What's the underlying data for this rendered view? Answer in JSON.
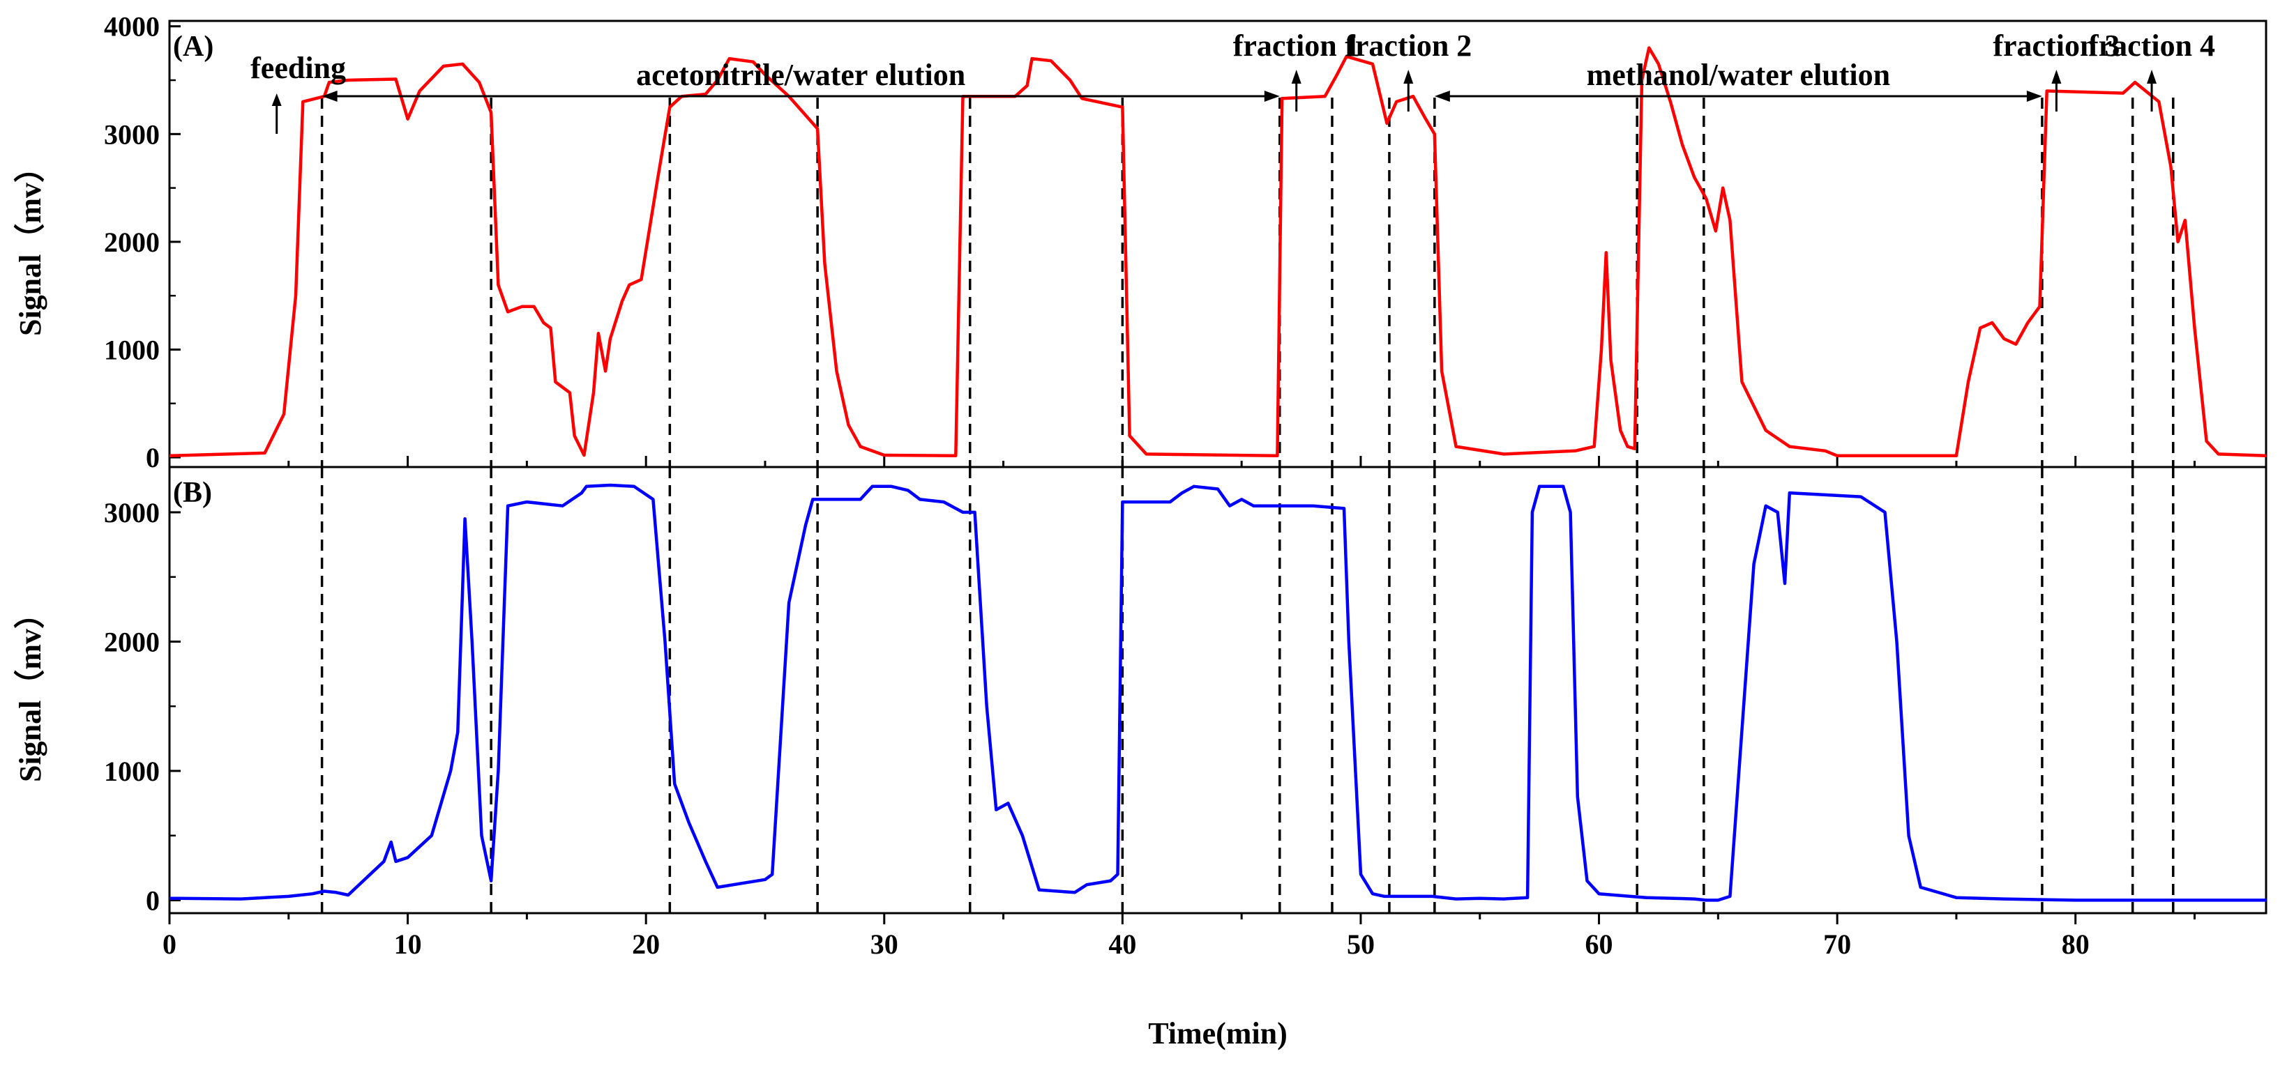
{
  "chart_data": [
    {
      "type": "line",
      "panel_label": "(A)",
      "ylabel": "Signal（mv）",
      "xlim": [
        0,
        88
      ],
      "ylim": [
        -90,
        4050
      ],
      "y_ticks": [
        0,
        1000,
        2000,
        3000,
        4000
      ],
      "series": [
        {
          "color": "#ff0000",
          "points": [
            [
              0,
              15
            ],
            [
              4,
              40
            ],
            [
              4.8,
              400
            ],
            [
              5.3,
              1500
            ],
            [
              5.6,
              3300
            ],
            [
              6.5,
              3350
            ],
            [
              6.7,
              3480
            ],
            [
              7.5,
              3500
            ],
            [
              9.5,
              3510
            ],
            [
              10,
              3140
            ],
            [
              10.5,
              3400
            ],
            [
              11.5,
              3630
            ],
            [
              12.3,
              3650
            ],
            [
              13,
              3480
            ],
            [
              13.5,
              3200
            ],
            [
              13.8,
              1600
            ],
            [
              14.2,
              1350
            ],
            [
              14.8,
              1400
            ],
            [
              15.3,
              1400
            ],
            [
              15.7,
              1250
            ],
            [
              16,
              1200
            ],
            [
              16.2,
              700
            ],
            [
              16.8,
              600
            ],
            [
              17.0,
              200
            ],
            [
              17.4,
              20
            ],
            [
              17.8,
              600
            ],
            [
              18.0,
              1150
            ],
            [
              18.3,
              800
            ],
            [
              18.5,
              1100
            ],
            [
              19,
              1450
            ],
            [
              19.3,
              1600
            ],
            [
              19.8,
              1650
            ],
            [
              20.5,
              2600
            ],
            [
              21,
              3250
            ],
            [
              21.5,
              3350
            ],
            [
              22.5,
              3370
            ],
            [
              23,
              3500
            ],
            [
              23.5,
              3700
            ],
            [
              24.5,
              3670
            ],
            [
              25,
              3550
            ],
            [
              26,
              3350
            ],
            [
              27.2,
              3050
            ],
            [
              27.5,
              1800
            ],
            [
              28,
              800
            ],
            [
              28.5,
              300
            ],
            [
              29,
              100
            ],
            [
              30,
              20
            ],
            [
              33,
              15
            ],
            [
              33.3,
              3350
            ],
            [
              35.5,
              3350
            ],
            [
              36,
              3450
            ],
            [
              36.2,
              3700
            ],
            [
              37,
              3680
            ],
            [
              37.8,
              3500
            ],
            [
              38.3,
              3330
            ],
            [
              40,
              3250
            ],
            [
              40.3,
              200
            ],
            [
              41,
              30
            ],
            [
              46.5,
              15
            ],
            [
              46.7,
              3330
            ],
            [
              48.5,
              3350
            ],
            [
              49,
              3550
            ],
            [
              49.4,
              3720
            ],
            [
              50.5,
              3650
            ],
            [
              51.1,
              3100
            ],
            [
              51.5,
              3300
            ],
            [
              52.2,
              3350
            ],
            [
              52.7,
              3150
            ],
            [
              53.1,
              3000
            ],
            [
              53.4,
              800
            ],
            [
              54,
              100
            ],
            [
              56,
              30
            ],
            [
              59,
              60
            ],
            [
              59.8,
              100
            ],
            [
              60.1,
              1000
            ],
            [
              60.3,
              1900
            ],
            [
              60.5,
              900
            ],
            [
              60.9,
              250
            ],
            [
              61.2,
              100
            ],
            [
              61.5,
              80
            ],
            [
              61.8,
              3500
            ],
            [
              62.1,
              3800
            ],
            [
              62.5,
              3650
            ],
            [
              63,
              3300
            ],
            [
              63.5,
              2900
            ],
            [
              64,
              2600
            ],
            [
              64.5,
              2400
            ],
            [
              64.9,
              2100
            ],
            [
              65.2,
              2500
            ],
            [
              65.5,
              2200
            ],
            [
              66,
              700
            ],
            [
              67,
              250
            ],
            [
              68,
              100
            ],
            [
              69.5,
              60
            ],
            [
              70,
              15
            ],
            [
              75,
              15
            ],
            [
              75.5,
              700
            ],
            [
              76,
              1200
            ],
            [
              76.5,
              1250
            ],
            [
              77,
              1100
            ],
            [
              77.5,
              1050
            ],
            [
              78,
              1250
            ],
            [
              78.5,
              1400
            ],
            [
              78.8,
              3400
            ],
            [
              82,
              3380
            ],
            [
              82.5,
              3480
            ],
            [
              83.5,
              3300
            ],
            [
              84,
              2700
            ],
            [
              84.3,
              2000
            ],
            [
              84.6,
              2200
            ],
            [
              85,
              1200
            ],
            [
              85.5,
              150
            ],
            [
              86,
              30
            ],
            [
              88,
              15
            ]
          ]
        }
      ]
    },
    {
      "type": "line",
      "panel_label": "(B)",
      "xlabel": "Time(min)",
      "ylabel": "Signal（mv）",
      "xlim": [
        0,
        88
      ],
      "ylim": [
        -100,
        3350
      ],
      "x_ticks": [
        0,
        10,
        20,
        30,
        40,
        50,
        60,
        70,
        80
      ],
      "y_ticks": [
        0,
        1000,
        2000,
        3000
      ],
      "series": [
        {
          "color": "#0000ff",
          "points": [
            [
              0,
              15
            ],
            [
              3,
              10
            ],
            [
              5,
              30
            ],
            [
              6,
              50
            ],
            [
              6.5,
              70
            ],
            [
              7,
              60
            ],
            [
              7.5,
              40
            ],
            [
              9,
              300
            ],
            [
              9.3,
              450
            ],
            [
              9.5,
              300
            ],
            [
              10,
              330
            ],
            [
              11,
              500
            ],
            [
              11.8,
              1000
            ],
            [
              12.1,
              1300
            ],
            [
              12.4,
              2950
            ],
            [
              12.7,
              2000
            ],
            [
              13.1,
              500
            ],
            [
              13.5,
              150
            ],
            [
              13.8,
              1000
            ],
            [
              14.2,
              3050
            ],
            [
              15,
              3080
            ],
            [
              16.5,
              3050
            ],
            [
              17.3,
              3150
            ],
            [
              17.5,
              3200
            ],
            [
              18.5,
              3210
            ],
            [
              19.5,
              3200
            ],
            [
              20.3,
              3100
            ],
            [
              20.8,
              2000
            ],
            [
              21.2,
              900
            ],
            [
              21.8,
              600
            ],
            [
              22.5,
              300
            ],
            [
              23,
              100
            ],
            [
              24,
              130
            ],
            [
              25,
              160
            ],
            [
              25.3,
              200
            ],
            [
              26,
              2300
            ],
            [
              26.7,
              2900
            ],
            [
              27,
              3100
            ],
            [
              29,
              3100
            ],
            [
              29.5,
              3200
            ],
            [
              30.3,
              3200
            ],
            [
              31,
              3170
            ],
            [
              31.5,
              3100
            ],
            [
              32.5,
              3080
            ],
            [
              33.3,
              3000
            ],
            [
              33.8,
              3000
            ],
            [
              34.3,
              1500
            ],
            [
              34.7,
              700
            ],
            [
              35.2,
              750
            ],
            [
              35.8,
              500
            ],
            [
              36.5,
              80
            ],
            [
              38,
              60
            ],
            [
              38.5,
              120
            ],
            [
              39.5,
              150
            ],
            [
              39.8,
              200
            ],
            [
              40,
              3080
            ],
            [
              42,
              3080
            ],
            [
              42.5,
              3150
            ],
            [
              43,
              3200
            ],
            [
              44,
              3180
            ],
            [
              44.5,
              3050
            ],
            [
              45,
              3100
            ],
            [
              45.5,
              3050
            ],
            [
              48,
              3050
            ],
            [
              49.3,
              3030
            ],
            [
              49.5,
              2000
            ],
            [
              50,
              200
            ],
            [
              50.5,
              50
            ],
            [
              51,
              30
            ],
            [
              53,
              30
            ],
            [
              54,
              10
            ],
            [
              55,
              15
            ],
            [
              56,
              10
            ],
            [
              57,
              20
            ],
            [
              57.2,
              3000
            ],
            [
              57.5,
              3200
            ],
            [
              58.5,
              3200
            ],
            [
              58.8,
              3000
            ],
            [
              59.1,
              800
            ],
            [
              59.5,
              150
            ],
            [
              60,
              50
            ],
            [
              62,
              20
            ],
            [
              64,
              10
            ],
            [
              64.5,
              0
            ],
            [
              65,
              0
            ],
            [
              65.5,
              30
            ],
            [
              66.5,
              2600
            ],
            [
              67,
              3050
            ],
            [
              67.5,
              3000
            ],
            [
              67.8,
              2450
            ],
            [
              68,
              3150
            ],
            [
              71,
              3120
            ],
            [
              72,
              3000
            ],
            [
              72.5,
              2000
            ],
            [
              73,
              500
            ],
            [
              73.5,
              100
            ],
            [
              75,
              20
            ],
            [
              77,
              10
            ],
            [
              80,
              0
            ],
            [
              88,
              0
            ]
          ]
        }
      ]
    }
  ],
  "x_axis_title": "Time(min)",
  "x_tick_labels": [
    "0",
    "10",
    "20",
    "30",
    "40",
    "50",
    "60",
    "70",
    "80"
  ],
  "divider_times": [
    6.4,
    13.5,
    21.0,
    27.2,
    33.6,
    40.0,
    46.6,
    48.8,
    51.2,
    53.1,
    61.6,
    64.4,
    78.6,
    82.4,
    84.1
  ],
  "annotations": [
    {
      "text": "feeding",
      "x": 4.5
    },
    {
      "text": "fraction 1",
      "x": 47.3
    },
    {
      "text": "fraction 2",
      "x": 52.0
    },
    {
      "text": "fraction 3",
      "x": 79.2
    },
    {
      "text": "fraction 4",
      "x": 83.2
    }
  ],
  "spans": [
    {
      "text": "acetonitrile/water elution",
      "x_start": 6.4,
      "x_end": 46.6
    },
    {
      "text": "methanol/water elution",
      "x_start": 53.1,
      "x_end": 78.6
    }
  ],
  "colors": {
    "panel_a_line": "#ff0000",
    "panel_b_line": "#0000ff",
    "axes": "#000000"
  }
}
